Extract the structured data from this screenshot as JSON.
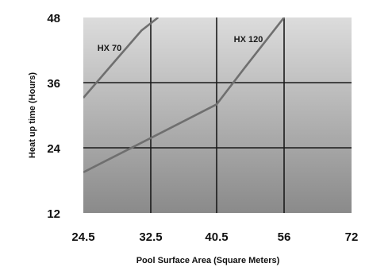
{
  "chart_data": {
    "type": "line",
    "xlabel": "Pool Surface Area (Square Meters)",
    "ylabel": "Heat up time (Hours)",
    "x_tick_labels": [
      "24.5",
      "32.5",
      "40.5",
      "56",
      "72"
    ],
    "y_tick_labels": [
      "12",
      "24",
      "36",
      "48"
    ],
    "ylim": [
      12,
      48
    ],
    "grid": true,
    "background": "vertical gradient, light grey at top to mid grey at bottom",
    "series": [
      {
        "name": "HX 70",
        "points": [
          [
            24.5,
            33.2
          ],
          [
            28.5,
            40.4
          ],
          [
            31.4,
            45.6
          ],
          [
            33.4,
            48
          ]
        ]
      },
      {
        "name": "HX 120",
        "points": [
          [
            24.5,
            19.5
          ],
          [
            32.5,
            25.8
          ],
          [
            40.5,
            32.0
          ],
          [
            47.0,
            38.8
          ],
          [
            56,
            48
          ]
        ]
      }
    ]
  },
  "colors": {
    "line": "#6f6f6f",
    "grid": "#1a1a1a",
    "bg_top": "#dcdcdc",
    "bg_bottom": "#8a8a8a"
  }
}
